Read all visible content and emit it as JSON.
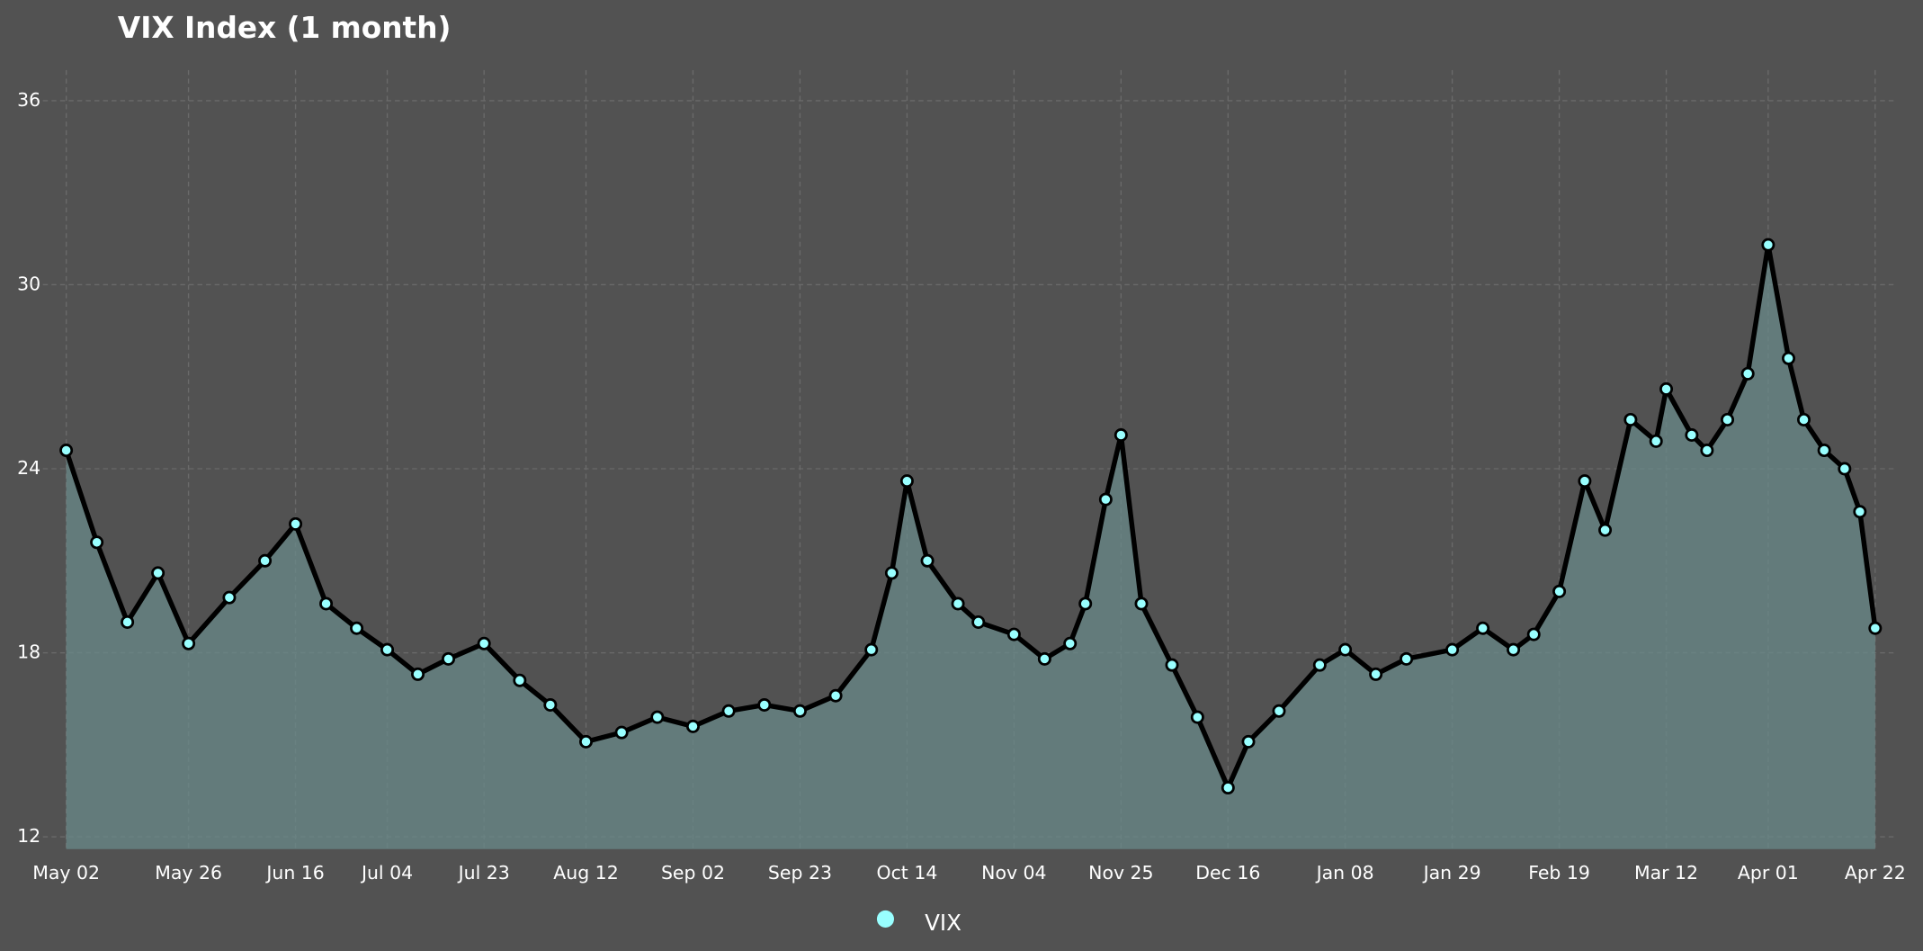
{
  "chart_data": {
    "type": "line",
    "title": "VIX Index (1 month)",
    "x": [
      0,
      6,
      12,
      18,
      24,
      32,
      39,
      45,
      51,
      57,
      63,
      69,
      75,
      82,
      89,
      95,
      102,
      109,
      116,
      123,
      130,
      137,
      144,
      151,
      158,
      162,
      165,
      169,
      175,
      179,
      186,
      192,
      197,
      200,
      204,
      207,
      211,
      217,
      222,
      228,
      232,
      238,
      246,
      251,
      257,
      263,
      272,
      278,
      284,
      288,
      293,
      298,
      302,
      307,
      312,
      314,
      319,
      322,
      326,
      330,
      334,
      338,
      341,
      345,
      349,
      352,
      355
    ],
    "series": [
      {
        "name": "VIX",
        "color": "#99ffff",
        "values": [
          24.6,
          21.6,
          19.0,
          20.6,
          18.3,
          19.8,
          21.0,
          22.2,
          19.6,
          18.8,
          18.1,
          17.3,
          17.8,
          18.3,
          17.1,
          16.3,
          15.1,
          15.4,
          15.9,
          15.6,
          16.1,
          16.3,
          16.1,
          16.6,
          18.1,
          20.6,
          23.6,
          21.0,
          19.6,
          19.0,
          18.6,
          17.8,
          18.3,
          19.6,
          23.0,
          25.1,
          19.6,
          17.6,
          15.9,
          13.6,
          15.1,
          16.1,
          17.6,
          18.1,
          17.3,
          17.8,
          18.1,
          18.8,
          18.1,
          18.6,
          20.0,
          23.6,
          22.0,
          25.6,
          24.9,
          26.6,
          25.1,
          24.6,
          25.6,
          27.1,
          31.3,
          27.6,
          25.6,
          24.6,
          24.0,
          22.6,
          18.8
        ]
      }
    ],
    "xlim": [
      0,
      355
    ],
    "xticks": [
      {
        "value": 0,
        "label": "May 02"
      },
      {
        "value": 24,
        "label": "May 26"
      },
      {
        "value": 45,
        "label": "Jun 16"
      },
      {
        "value": 63,
        "label": "Jul 04"
      },
      {
        "value": 82,
        "label": "Jul 23"
      },
      {
        "value": 102,
        "label": "Aug 12"
      },
      {
        "value": 123,
        "label": "Sep 02"
      },
      {
        "value": 144,
        "label": "Sep 23"
      },
      {
        "value": 165,
        "label": "Oct 14"
      },
      {
        "value": 186,
        "label": "Nov 04"
      },
      {
        "value": 207,
        "label": "Nov 25"
      },
      {
        "value": 228,
        "label": "Dec 16"
      },
      {
        "value": 251,
        "label": "Jan 08"
      },
      {
        "value": 272,
        "label": "Jan 29"
      },
      {
        "value": 293,
        "label": "Feb 19"
      },
      {
        "value": 314,
        "label": "Mar 12"
      },
      {
        "value": 334,
        "label": "Apr 01"
      },
      {
        "value": 355,
        "label": "Apr 22"
      }
    ],
    "ylim": [
      11.6,
      37.0
    ],
    "yticks": [
      12,
      18,
      24,
      30,
      36
    ],
    "grid": true,
    "area": true,
    "legend": "bottom"
  }
}
